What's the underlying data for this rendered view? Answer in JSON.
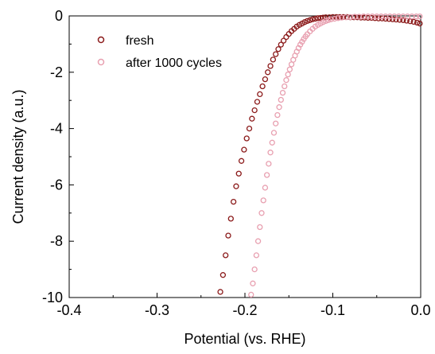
{
  "chart_data": {
    "type": "scatter",
    "title": "",
    "xlabel": "Potential (vs. RHE)",
    "ylabel": "Current density (a.u.)",
    "xlim": [
      -0.4,
      0.0
    ],
    "ylim": [
      -10,
      0
    ],
    "x_ticks": [
      -0.4,
      -0.3,
      -0.2,
      -0.1,
      0.0
    ],
    "x_tick_labels": [
      "-0.4",
      "-0.3",
      "-0.2",
      "-0.1",
      "0.0"
    ],
    "y_ticks": [
      0,
      -2,
      -4,
      -6,
      -8,
      -10
    ],
    "y_tick_labels": [
      "0",
      "-2",
      "-4",
      "-6",
      "-8",
      "-10"
    ],
    "grid": false,
    "legend_position": "top-left",
    "series": [
      {
        "name": "fresh",
        "color": "#8b1a1a",
        "marker": "open-circle",
        "points": [
          [
            -0.228,
            -9.8
          ],
          [
            -0.225,
            -9.2
          ],
          [
            -0.222,
            -8.5
          ],
          [
            -0.219,
            -7.8
          ],
          [
            -0.216,
            -7.2
          ],
          [
            -0.213,
            -6.6
          ],
          [
            -0.21,
            -6.05
          ],
          [
            -0.207,
            -5.6
          ],
          [
            -0.204,
            -5.15
          ],
          [
            -0.201,
            -4.75
          ],
          [
            -0.198,
            -4.35
          ],
          [
            -0.195,
            -4.0
          ],
          [
            -0.192,
            -3.65
          ],
          [
            -0.189,
            -3.35
          ],
          [
            -0.186,
            -3.05
          ],
          [
            -0.183,
            -2.78
          ],
          [
            -0.18,
            -2.5
          ],
          [
            -0.177,
            -2.25
          ],
          [
            -0.174,
            -2.0
          ],
          [
            -0.171,
            -1.78
          ],
          [
            -0.168,
            -1.55
          ],
          [
            -0.165,
            -1.36
          ],
          [
            -0.162,
            -1.18
          ],
          [
            -0.159,
            -1.02
          ],
          [
            -0.156,
            -0.88
          ],
          [
            -0.153,
            -0.75
          ],
          [
            -0.15,
            -0.64
          ],
          [
            -0.147,
            -0.54
          ],
          [
            -0.144,
            -0.46
          ],
          [
            -0.141,
            -0.38
          ],
          [
            -0.138,
            -0.32
          ],
          [
            -0.135,
            -0.27
          ],
          [
            -0.132,
            -0.22
          ],
          [
            -0.129,
            -0.18
          ],
          [
            -0.126,
            -0.15
          ],
          [
            -0.123,
            -0.12
          ],
          [
            -0.12,
            -0.1
          ],
          [
            -0.117,
            -0.08
          ],
          [
            -0.114,
            -0.07
          ],
          [
            -0.111,
            -0.06
          ],
          [
            -0.108,
            -0.05
          ],
          [
            -0.104,
            -0.05
          ],
          [
            -0.1,
            -0.04
          ],
          [
            -0.096,
            -0.04
          ],
          [
            -0.092,
            -0.04
          ],
          [
            -0.088,
            -0.04
          ],
          [
            -0.084,
            -0.04
          ],
          [
            -0.08,
            -0.05
          ],
          [
            -0.076,
            -0.05
          ],
          [
            -0.072,
            -0.05
          ],
          [
            -0.068,
            -0.06
          ],
          [
            -0.064,
            -0.06
          ],
          [
            -0.06,
            -0.07
          ],
          [
            -0.056,
            -0.07
          ],
          [
            -0.052,
            -0.08
          ],
          [
            -0.048,
            -0.09
          ],
          [
            -0.044,
            -0.09
          ],
          [
            -0.04,
            -0.1
          ],
          [
            -0.036,
            -0.11
          ],
          [
            -0.032,
            -0.12
          ],
          [
            -0.028,
            -0.13
          ],
          [
            -0.024,
            -0.14
          ],
          [
            -0.02,
            -0.15
          ],
          [
            -0.016,
            -0.17
          ],
          [
            -0.012,
            -0.19
          ],
          [
            -0.008,
            -0.21
          ],
          [
            -0.004,
            -0.24
          ],
          [
            -0.001,
            -0.27
          ]
        ]
      },
      {
        "name": "after 1000 cycles",
        "color": "#e8a0b0",
        "marker": "open-circle",
        "points": [
          [
            -0.193,
            -9.9
          ],
          [
            -0.191,
            -9.5
          ],
          [
            -0.189,
            -9.0
          ],
          [
            -0.187,
            -8.5
          ],
          [
            -0.185,
            -8.0
          ],
          [
            -0.183,
            -7.5
          ],
          [
            -0.181,
            -7.0
          ],
          [
            -0.179,
            -6.55
          ],
          [
            -0.177,
            -6.1
          ],
          [
            -0.175,
            -5.65
          ],
          [
            -0.173,
            -5.25
          ],
          [
            -0.171,
            -4.85
          ],
          [
            -0.169,
            -4.5
          ],
          [
            -0.167,
            -4.15
          ],
          [
            -0.165,
            -3.82
          ],
          [
            -0.163,
            -3.52
          ],
          [
            -0.161,
            -3.24
          ],
          [
            -0.159,
            -2.98
          ],
          [
            -0.157,
            -2.73
          ],
          [
            -0.155,
            -2.5
          ],
          [
            -0.153,
            -2.28
          ],
          [
            -0.151,
            -2.08
          ],
          [
            -0.149,
            -1.9
          ],
          [
            -0.147,
            -1.72
          ],
          [
            -0.145,
            -1.56
          ],
          [
            -0.143,
            -1.41
          ],
          [
            -0.141,
            -1.27
          ],
          [
            -0.139,
            -1.14
          ],
          [
            -0.137,
            -1.02
          ],
          [
            -0.135,
            -0.92
          ],
          [
            -0.133,
            -0.82
          ],
          [
            -0.131,
            -0.73
          ],
          [
            -0.129,
            -0.65
          ],
          [
            -0.126,
            -0.55
          ],
          [
            -0.123,
            -0.46
          ],
          [
            -0.12,
            -0.38
          ],
          [
            -0.117,
            -0.32
          ],
          [
            -0.114,
            -0.27
          ],
          [
            -0.111,
            -0.22
          ],
          [
            -0.108,
            -0.18
          ],
          [
            -0.105,
            -0.15
          ],
          [
            -0.102,
            -0.12
          ],
          [
            -0.098,
            -0.1
          ],
          [
            -0.094,
            -0.08
          ],
          [
            -0.09,
            -0.06
          ],
          [
            -0.085,
            -0.05
          ],
          [
            -0.08,
            -0.04
          ],
          [
            -0.075,
            -0.03
          ],
          [
            -0.07,
            -0.03
          ],
          [
            -0.065,
            -0.02
          ],
          [
            -0.06,
            -0.02
          ],
          [
            -0.055,
            -0.02
          ],
          [
            -0.05,
            -0.02
          ],
          [
            -0.045,
            -0.02
          ],
          [
            -0.04,
            -0.02
          ],
          [
            -0.035,
            -0.02
          ],
          [
            -0.03,
            -0.02
          ],
          [
            -0.025,
            -0.02
          ],
          [
            -0.02,
            -0.02
          ],
          [
            -0.015,
            -0.02
          ],
          [
            -0.01,
            -0.02
          ],
          [
            -0.005,
            -0.02
          ],
          [
            -0.001,
            -0.02
          ]
        ]
      }
    ]
  }
}
